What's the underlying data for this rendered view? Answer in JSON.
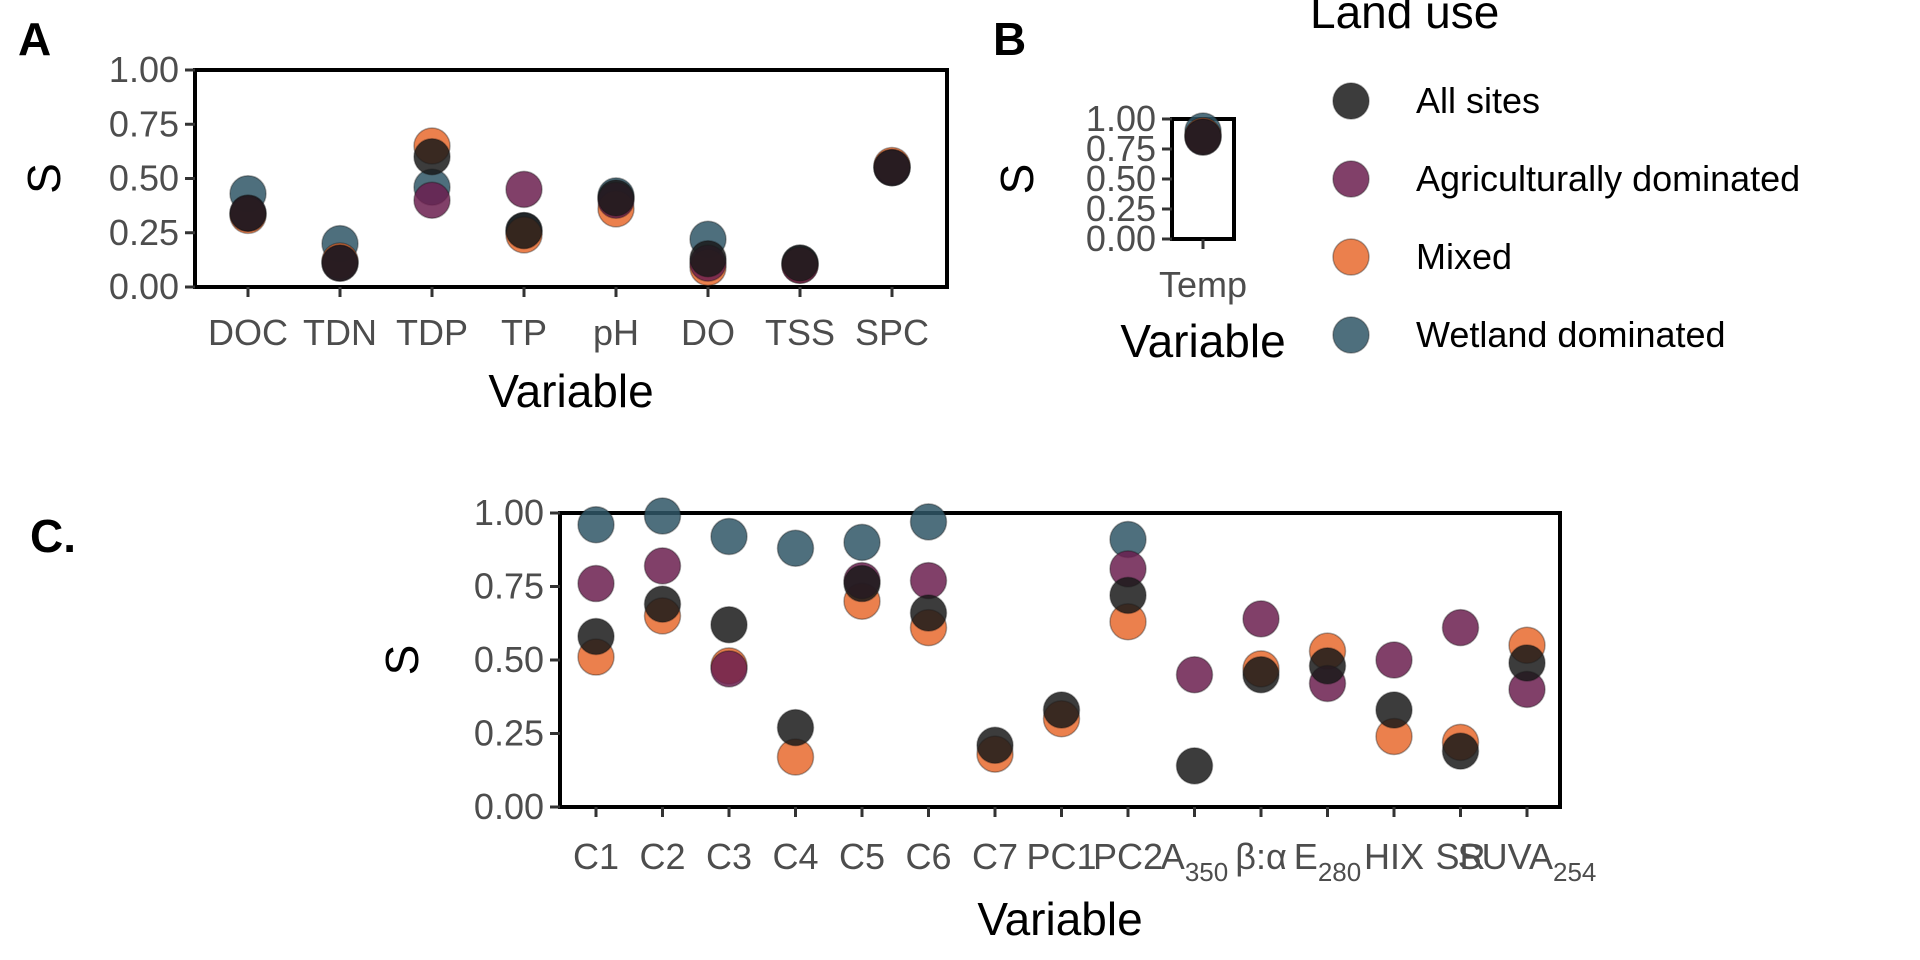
{
  "chart_data": [
    {
      "panel": "A",
      "type": "scatter",
      "title": "",
      "xlabel": "Variable",
      "ylabel": "S",
      "ylim": [
        0,
        1
      ],
      "yticks": [
        "0.00",
        "0.25",
        "0.50",
        "0.75",
        "1.00"
      ],
      "grid": false,
      "categories": [
        {
          "label": "DOC"
        },
        {
          "label": "TDN"
        },
        {
          "label": "TDP"
        },
        {
          "label": "TP"
        },
        {
          "label": "pH"
        },
        {
          "label": "DO"
        },
        {
          "label": "TSS"
        },
        {
          "label": "SPC"
        }
      ],
      "series": [
        {
          "name": "All sites",
          "values": [
            0.34,
            0.11,
            0.6,
            0.26,
            0.41,
            0.13,
            0.11,
            0.55
          ]
        },
        {
          "name": "Agriculturally dominated",
          "values": [
            0.34,
            0.11,
            0.4,
            0.45,
            0.4,
            0.11,
            0.1,
            0.55
          ]
        },
        {
          "name": "Mixed",
          "values": [
            0.33,
            0.12,
            0.65,
            0.24,
            0.36,
            0.09,
            0.1,
            0.56
          ]
        },
        {
          "name": "Wetland dominated",
          "values": [
            0.43,
            0.2,
            0.46,
            0.26,
            0.42,
            0.22,
            0.11,
            0.55
          ]
        }
      ]
    },
    {
      "panel": "B",
      "type": "scatter",
      "title": "",
      "xlabel": "Variable",
      "ylabel": "S",
      "ylim": [
        0,
        1
      ],
      "yticks": [
        "0.00",
        "0.25",
        "0.50",
        "0.75",
        "1.00"
      ],
      "grid": false,
      "categories": [
        {
          "label": "Temp"
        }
      ],
      "series": [
        {
          "name": "All sites",
          "values": [
            0.85
          ]
        },
        {
          "name": "Agriculturally dominated",
          "values": [
            0.85
          ]
        },
        {
          "name": "Mixed",
          "values": [
            0.86
          ]
        },
        {
          "name": "Wetland dominated",
          "values": [
            0.9
          ]
        }
      ]
    },
    {
      "panel": "C.",
      "type": "scatter",
      "title": "",
      "xlabel": "Variable",
      "ylabel": "S",
      "ylim": [
        0,
        1
      ],
      "yticks": [
        "0.00",
        "0.25",
        "0.50",
        "0.75",
        "1.00"
      ],
      "grid": false,
      "categories": [
        {
          "label": "C1"
        },
        {
          "label": "C2"
        },
        {
          "label": "C3"
        },
        {
          "label": "C4"
        },
        {
          "label": "C5"
        },
        {
          "label": "C6"
        },
        {
          "label": "C7"
        },
        {
          "label": "PC1"
        },
        {
          "label": "PC2"
        },
        {
          "label": "A",
          "sub": "350"
        },
        {
          "label": "β:α"
        },
        {
          "label": "E",
          "sub": "280"
        },
        {
          "label": "HIX"
        },
        {
          "label": "SR"
        },
        {
          "label": "SUVA",
          "sub": "254"
        }
      ],
      "series": [
        {
          "name": "All sites",
          "values": [
            0.58,
            0.69,
            0.62,
            0.27,
            0.76,
            0.66,
            0.21,
            0.33,
            0.72,
            0.14,
            0.45,
            0.48,
            0.33,
            0.19,
            0.49
          ]
        },
        {
          "name": "Agriculturally dominated",
          "values": [
            0.76,
            0.82,
            0.47,
            null,
            0.77,
            0.77,
            null,
            null,
            0.81,
            0.45,
            0.64,
            0.42,
            0.5,
            0.61,
            0.4
          ]
        },
        {
          "name": "Mixed",
          "values": [
            0.51,
            0.65,
            0.48,
            0.17,
            0.7,
            0.61,
            0.18,
            0.3,
            0.63,
            null,
            0.47,
            0.53,
            0.24,
            0.22,
            0.55
          ]
        },
        {
          "name": "Wetland dominated",
          "values": [
            0.96,
            0.99,
            0.92,
            0.88,
            0.9,
            0.97,
            null,
            null,
            0.91,
            null,
            null,
            null,
            null,
            null,
            null
          ]
        }
      ]
    }
  ],
  "legend": {
    "title": "Land use",
    "items": [
      {
        "label": "All sites",
        "color": "#1a1a1a"
      },
      {
        "label": "Agriculturally dominated",
        "color": "#6b1f4f"
      },
      {
        "label": "Mixed",
        "color": "#e76a2e"
      },
      {
        "label": "Wetland dominated",
        "color": "#2f5666"
      }
    ]
  }
}
